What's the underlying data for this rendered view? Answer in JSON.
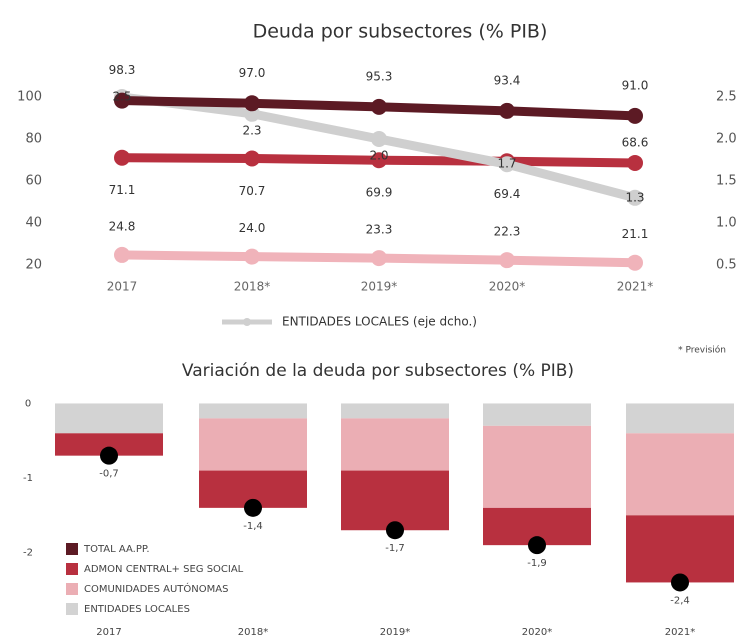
{
  "chart_data": [
    {
      "type": "line",
      "title": "Deuda por subsectores (% PIB)",
      "categories": [
        "2017",
        "2018*",
        "2019*",
        "2020*",
        "2021*"
      ],
      "ylim": [
        10,
        120
      ],
      "yticks": [
        20,
        40,
        60,
        80,
        100
      ],
      "y2lim": [
        0.25,
        3.0
      ],
      "y2ticks": [
        0.5,
        {
          "value": 1,
          "label": "1.0"
        },
        1.5,
        {
          "value": 2,
          "label": "2.0"
        },
        2.5
      ],
      "series": [
        {
          "color": "#5c1a24",
          "values": [
            98.3,
            97.0,
            95.3,
            93.4,
            91.0
          ],
          "value_labels": [
            "98.3",
            "97.0",
            "95.3",
            "93.4",
            "91.0"
          ]
        },
        {
          "color": "#b8303f",
          "values": [
            71.1,
            70.7,
            69.9,
            69.4,
            68.6
          ],
          "value_labels": [
            "71.1",
            "70.7",
            "69.9",
            "69.4",
            "68.6"
          ]
        },
        {
          "color": "#f0b3ba",
          "values": [
            24.8,
            24.0,
            23.3,
            22.3,
            21.1
          ],
          "value_labels": [
            "24.8",
            "24.0",
            "23.3",
            "22.3",
            "21.1"
          ]
        },
        {
          "name": "ENTIDADES LOCALES (eje dcho.)",
          "color": "#cfcfcf",
          "axis": "y2",
          "values": [
            2.5,
            2.3,
            2.0,
            1.7,
            1.3
          ],
          "value_labels": [
            "2.5",
            "2.3",
            "2.0",
            "1.7",
            "1.3"
          ]
        }
      ],
      "footnote": "* Previsión"
    },
    {
      "type": "bar",
      "stacked": true,
      "title": "Variación de la deuda por subsectores (% PIB)",
      "categories": [
        "2017",
        "2018*",
        "2019*",
        "2020*",
        "2021*"
      ],
      "ylim": [
        -2.85,
        0.1
      ],
      "yticks": [
        0,
        -1,
        -2
      ],
      "series": [
        {
          "name": "ENTIDADES LOCALES",
          "color": "#d3d3d3",
          "values": [
            -0.4,
            -0.2,
            -0.2,
            -0.3,
            -0.4
          ]
        },
        {
          "name": "COMUNIDADES AUTÓNOMAS",
          "color": "#ebaeb4",
          "values": [
            0,
            -0.7,
            -0.7,
            -1.1,
            -1.1
          ]
        },
        {
          "name": "ADMON CENTRAL+ SEG SOCIAL",
          "color": "#b8303f",
          "values": [
            -0.3,
            -0.5,
            -0.8,
            -0.5,
            -0.9
          ]
        }
      ],
      "total": {
        "name": "TOTAL AA.PP.",
        "color": "#5c1a24",
        "marker_color": "#000000",
        "values": [
          -0.7,
          -1.4,
          -1.7,
          -1.9,
          -2.4
        ],
        "value_labels": [
          "-0,7",
          "-1,4",
          "-1,7",
          "-1,9",
          "-2,4"
        ]
      }
    }
  ]
}
